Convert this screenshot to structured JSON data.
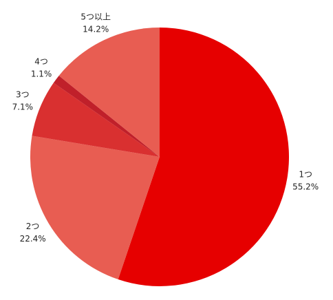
{
  "chart_data": {
    "type": "pie",
    "categories": [
      "1つ",
      "2つ",
      "3つ",
      "4つ",
      "5つ以上"
    ],
    "values": [
      55.2,
      22.4,
      7.1,
      1.1,
      14.2
    ],
    "value_labels": [
      "55.2%",
      "22.4%",
      "7.1%",
      "1.1%",
      "14.2%"
    ],
    "colors": [
      "#e60000",
      "#e85d52",
      "#d93030",
      "#c0202a",
      "#e85d52"
    ]
  }
}
